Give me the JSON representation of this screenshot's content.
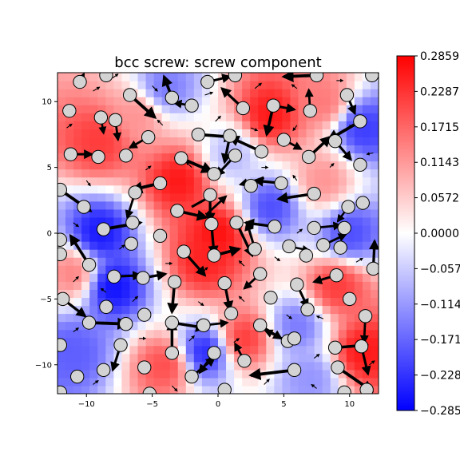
{
  "chart_data": {
    "type": "heatmap",
    "title": "bcc screw: screw component",
    "xlim": [
      -12.2,
      12.2
    ],
    "ylim": [
      -12.2,
      12.2
    ],
    "x_ticks": [
      -10,
      -5,
      0,
      5,
      10
    ],
    "x_tick_labels": [
      "−10",
      "−5",
      "0",
      "5",
      "10"
    ],
    "y_ticks": [
      10,
      5,
      0,
      -5,
      -10
    ],
    "y_tick_labels": [
      "10",
      "5",
      "0",
      "−5",
      "−10"
    ],
    "colormap": "bwr",
    "colorbar": {
      "min": -0.2859,
      "max": 0.2859,
      "ticks": [
        0.2859,
        0.2287,
        0.1715,
        0.1143,
        0.0572,
        0.0,
        -0.0572,
        -0.1143,
        -0.1715,
        -0.2287,
        -0.2859
      ],
      "tick_labels": [
        "0.2859",
        "0.2287",
        "0.1715",
        "0.1143",
        "0.0572",
        "0.0000",
        "−0.0572",
        "−0.1143",
        "−0.1715",
        "−0.2287",
        "−0.2859"
      ]
    },
    "colors": {
      "low": "#0000ff",
      "mid": "#ffffff",
      "high": "#ff0000",
      "atom_fill": "#d3d3d3",
      "arrow": "#000000"
    },
    "field_regions": [
      {
        "x": -9,
        "y": 7,
        "v": 0.22
      },
      {
        "x": -6,
        "y": 9,
        "v": 0.12
      },
      {
        "x": -3,
        "y": 4,
        "v": 0.26
      },
      {
        "x": 0,
        "y": 0,
        "v": 0.27
      },
      {
        "x": -1,
        "y": -2,
        "v": 0.25
      },
      {
        "x": 4,
        "y": 9,
        "v": 0.26
      },
      {
        "x": 8,
        "y": 10,
        "v": 0.15
      },
      {
        "x": 8,
        "y": 4,
        "v": 0.12
      },
      {
        "x": 9,
        "y": -4,
        "v": 0.22
      },
      {
        "x": 11,
        "y": -9,
        "v": 0.26
      },
      {
        "x": -4,
        "y": -10,
        "v": 0.2
      },
      {
        "x": -11,
        "y": -3,
        "v": 0.14
      },
      {
        "x": 2,
        "y": -8,
        "v": 0.22
      },
      {
        "x": -9,
        "y": 0,
        "v": -0.26
      },
      {
        "x": -8,
        "y": -4,
        "v": -0.27
      },
      {
        "x": -1,
        "y": -9,
        "v": -0.24
      },
      {
        "x": 4,
        "y": 2,
        "v": -0.2
      },
      {
        "x": 10,
        "y": 0,
        "v": -0.2
      },
      {
        "x": 11,
        "y": 8,
        "v": -0.22
      },
      {
        "x": -4,
        "y": 11,
        "v": -0.15
      },
      {
        "x": 6,
        "y": -7,
        "v": -0.15
      },
      {
        "x": -11,
        "y": -9,
        "v": -0.18
      },
      {
        "x": 7,
        "y": -11,
        "v": -0.12
      },
      {
        "x": 1,
        "y": 6,
        "v": -0.08
      }
    ],
    "atoms": [
      [
        -10.5,
        11.5
      ],
      [
        -8.5,
        12
      ],
      [
        -6.7,
        10.5
      ],
      [
        -3.5,
        10.3
      ],
      [
        -2.0,
        9.7
      ],
      [
        -0.8,
        11.5
      ],
      [
        1.3,
        12
      ],
      [
        1.9,
        9.5
      ],
      [
        4.2,
        9.7
      ],
      [
        7.0,
        9.3
      ],
      [
        7.5,
        12
      ],
      [
        9.8,
        10.5
      ],
      [
        10.8,
        8.5
      ],
      [
        11.7,
        12
      ],
      [
        -11.3,
        9.3
      ],
      [
        -8.9,
        8.8
      ],
      [
        -7.8,
        8.6
      ],
      [
        -5.3,
        7.3
      ],
      [
        -1.5,
        7.5
      ],
      [
        0.9,
        7.4
      ],
      [
        3.3,
        6.2
      ],
      [
        5.0,
        7.1
      ],
      [
        6.9,
        5.8
      ],
      [
        8.9,
        7.0
      ],
      [
        10.8,
        5.2
      ],
      [
        -11.2,
        6.0
      ],
      [
        -9.1,
        5.8
      ],
      [
        -7.0,
        5.9
      ],
      [
        -2.8,
        5.7
      ],
      [
        -0.3,
        4.5
      ],
      [
        1.3,
        5.9
      ],
      [
        2.5,
        3.6
      ],
      [
        4.8,
        3.8
      ],
      [
        7.3,
        3.0
      ],
      [
        9.9,
        2.0
      ],
      [
        11.0,
        2.3
      ],
      [
        -12.0,
        3.3
      ],
      [
        -10.2,
        2.0
      ],
      [
        -8.7,
        0.3
      ],
      [
        -6.5,
        0.8
      ],
      [
        -6.6,
        -0.8
      ],
      [
        -4.4,
        3.8
      ],
      [
        -6.3,
        3.1
      ],
      [
        -3.1,
        1.7
      ],
      [
        -0.6,
        2.9
      ],
      [
        -0.5,
        0.7
      ],
      [
        1.4,
        0.8
      ],
      [
        4.3,
        0.5
      ],
      [
        7.3,
        0.4
      ],
      [
        9.6,
        0.4
      ],
      [
        -12.0,
        -0.5
      ],
      [
        -12.0,
        -1.6
      ],
      [
        -9.8,
        -2.4
      ],
      [
        -7.9,
        -3.3
      ],
      [
        -5.7,
        -3.4
      ],
      [
        -4.4,
        -0.2
      ],
      [
        -2.6,
        -1.4
      ],
      [
        -0.3,
        -1.7
      ],
      [
        2.8,
        -1.2
      ],
      [
        5.4,
        -1.0
      ],
      [
        6.7,
        -1.7
      ],
      [
        8.0,
        -0.9
      ],
      [
        9.3,
        -1.1
      ],
      [
        11.8,
        -2.7
      ],
      [
        -11.8,
        -5.0
      ],
      [
        -8.5,
        -5.6
      ],
      [
        -5.6,
        -6.2
      ],
      [
        -3.3,
        -3.7
      ],
      [
        0.5,
        -3.8
      ],
      [
        3.2,
        -3.1
      ],
      [
        4.0,
        -4.9
      ],
      [
        6.0,
        -3.9
      ],
      [
        6.8,
        -5.8
      ],
      [
        9.0,
        -3.2
      ],
      [
        10.0,
        -5.0
      ],
      [
        11.2,
        -6.3
      ],
      [
        -9.8,
        -6.8
      ],
      [
        -7.0,
        -6.9
      ],
      [
        -3.5,
        -6.8
      ],
      [
        -1.1,
        -7.0
      ],
      [
        1.0,
        -6.1
      ],
      [
        3.2,
        -7.0
      ],
      [
        5.3,
        -8.2
      ],
      [
        5.8,
        -8.0
      ],
      [
        8.9,
        -8.7
      ],
      [
        10.9,
        -8.6
      ],
      [
        -12.0,
        -8.5
      ],
      [
        -7.4,
        -8.5
      ],
      [
        -3.5,
        -9.1
      ],
      [
        -0.3,
        -9.1
      ],
      [
        2.0,
        -9.7
      ],
      [
        -8.7,
        -10.4
      ],
      [
        -5.6,
        -10.2
      ],
      [
        -2.0,
        -10.9
      ],
      [
        5.8,
        -10.4
      ],
      [
        9.1,
        -10.2
      ],
      [
        11.3,
        -11.9
      ],
      [
        -10.7,
        -10.9
      ],
      [
        -12.0,
        -12.1
      ],
      [
        -5.2,
        -12.2
      ],
      [
        0.5,
        -11.9
      ],
      [
        9.6,
        -12.1
      ]
    ],
    "displacements": [
      [
        -10.5,
        11.5,
        0.3,
        0.6,
        0.6
      ],
      [
        -6.7,
        10.5,
        1.9,
        -1.7,
        1
      ],
      [
        -3.5,
        10.3,
        -0.6,
        1.6,
        0.9
      ],
      [
        -2.0,
        9.7,
        -1.3,
        0.2,
        0.6
      ],
      [
        -0.8,
        11.5,
        1.7,
        0.4,
        0.7
      ],
      [
        1.9,
        9.5,
        -1.6,
        1.5,
        0.8
      ],
      [
        4.2,
        9.7,
        -0.5,
        -2.2,
        0.9
      ],
      [
        4.2,
        9.7,
        1.6,
        -0.3,
        0.7
      ],
      [
        7.0,
        9.3,
        -0.1,
        1.6,
        0.6
      ],
      [
        7.5,
        12,
        -2.5,
        -0.1,
        1
      ],
      [
        9.8,
        10.5,
        0.6,
        -1.4,
        0.7
      ],
      [
        10.8,
        8.5,
        -2.4,
        -1.4,
        1
      ],
      [
        -8.9,
        8.8,
        0.2,
        -1.2,
        0.5
      ],
      [
        -5.3,
        7.3,
        -1.4,
        -0.8,
        0.6
      ],
      [
        -1.5,
        7.5,
        2.7,
        -0.2,
        1
      ],
      [
        0.9,
        7.4,
        -0.4,
        -2.0,
        0.8
      ],
      [
        3.3,
        6.2,
        -2.4,
        1.1,
        0.9
      ],
      [
        5.0,
        7.1,
        1.3,
        -0.7,
        0.6
      ],
      [
        6.9,
        5.8,
        1.6,
        1.5,
        0.9
      ],
      [
        8.9,
        7.0,
        1.2,
        -1.4,
        0.7
      ],
      [
        -11.2,
        6.0,
        1.6,
        0,
        0.7
      ],
      [
        -2.8,
        5.7,
        2.3,
        -1.0,
        1
      ],
      [
        1.3,
        5.9,
        -1.4,
        -1.5,
        0.7
      ],
      [
        4.8,
        3.8,
        -2.0,
        0.2,
        0.8
      ],
      [
        7.3,
        3.0,
        -2.7,
        -0.4,
        0.9
      ],
      [
        9.9,
        2.0,
        -0.8,
        -1.1,
        0.5
      ],
      [
        -12.0,
        3.3,
        2.3,
        -1.6,
        1
      ],
      [
        -8.7,
        0.3,
        2.8,
        0.5,
        1
      ],
      [
        -4.4,
        3.8,
        -2.1,
        -0.5,
        1
      ],
      [
        -6.3,
        3.1,
        -0.6,
        -1.9,
        0.6
      ],
      [
        -3.1,
        1.7,
        2.2,
        -0.5,
        0.9
      ],
      [
        -0.6,
        2.9,
        0,
        -2.0,
        0.8
      ],
      [
        -0.5,
        0.7,
        0.2,
        -2.3,
        0.8
      ],
      [
        1.4,
        0.8,
        1.2,
        -2.5,
        0.8
      ],
      [
        4.3,
        0.5,
        -2.2,
        0.3,
        0.8
      ],
      [
        7.3,
        0.4,
        2.0,
        0.2,
        0.6
      ],
      [
        -9.8,
        -2.4,
        -1.4,
        2.2,
        0.9
      ],
      [
        -7.9,
        -3.3,
        2.0,
        0.1,
        0.7
      ],
      [
        -5.7,
        -3.4,
        1.7,
        0.3,
        0.8
      ],
      [
        -2.6,
        -1.4,
        1.6,
        -1.8,
        0.8
      ],
      [
        -0.3,
        -1.7,
        1.9,
        0.5,
        0.9
      ],
      [
        2.8,
        -1.2,
        -0.6,
        2.0,
        0.7
      ],
      [
        5.4,
        -1.0,
        1.5,
        -0.3,
        0.5
      ],
      [
        8.0,
        -0.9,
        1.7,
        0.8,
        0.6
      ],
      [
        11.8,
        -2.7,
        0.1,
        2.1,
        0.8
      ],
      [
        -11.8,
        -5.0,
        1.7,
        -1.3,
        0.8
      ],
      [
        -3.3,
        -3.7,
        -0.2,
        -2.3,
        0.9
      ],
      [
        0.5,
        -3.8,
        0.4,
        -2.0,
        0.8
      ],
      [
        3.2,
        -3.1,
        -1.2,
        -1.1,
        0.6
      ],
      [
        6.0,
        -3.9,
        0.8,
        -1.7,
        0.7
      ],
      [
        9.0,
        -3.2,
        -1.7,
        -0.5,
        0.7
      ],
      [
        11.2,
        -6.3,
        -0.1,
        -2.0,
        0.6
      ],
      [
        -9.8,
        -6.8,
        2.9,
        -0.1,
        1
      ],
      [
        -3.5,
        -6.8,
        2.5,
        -0.4,
        0.9
      ],
      [
        -1.1,
        -7.0,
        1.8,
        0.2,
        0.6
      ],
      [
        3.2,
        -7.0,
        1.6,
        -1.0,
        0.7
      ],
      [
        5.3,
        -8.2,
        -1.7,
        0.8,
        0.6
      ],
      [
        8.9,
        -8.7,
        2.4,
        0.2,
        0.9
      ],
      [
        10.9,
        -8.6,
        0.5,
        -2.1,
        0.7
      ],
      [
        -7.4,
        -8.5,
        -0.6,
        -1.9,
        0.7
      ],
      [
        -3.5,
        -9.1,
        0,
        2.4,
        0.9
      ],
      [
        -0.3,
        -9.1,
        -1.1,
        -1.5,
        0.7
      ],
      [
        2.0,
        -9.7,
        -0.7,
        1.3,
        0.6
      ],
      [
        5.8,
        -10.4,
        -3.3,
        -0.4,
        1
      ],
      [
        9.1,
        -10.2,
        2.6,
        -1.8,
        1
      ],
      [
        -2.0,
        -10.9,
        1.7,
        1.4,
        0.7
      ],
      [
        -0.8,
        1.5,
        1.4,
        1.3,
        0.6
      ],
      [
        -7.8,
        8.6,
        0.2,
        -1.5,
        0.6
      ],
      [
        -2.0,
        2.0,
        1.8,
        1.0,
        0.7
      ],
      [
        3.5,
        4.2,
        -1.8,
        -0.5,
        0.6
      ]
    ],
    "small_arrows": [
      [
        -9.5,
        10.8,
        0.5,
        0.3
      ],
      [
        -5,
        11.2,
        0.4,
        -0.4
      ],
      [
        -1,
        10.5,
        0.6,
        0.2
      ],
      [
        2.8,
        11,
        0.5,
        0.4
      ],
      [
        6,
        11,
        -0.4,
        0.3
      ],
      [
        9,
        11.6,
        0.5,
        0
      ],
      [
        -11.5,
        8,
        0.4,
        0.3
      ],
      [
        -4.2,
        8.2,
        -0.4,
        0.4
      ],
      [
        -0.2,
        8.5,
        0.4,
        0.4
      ],
      [
        2.5,
        8,
        0.5,
        -0.2
      ],
      [
        6,
        8.2,
        -0.3,
        -0.4
      ],
      [
        9.8,
        8,
        0.4,
        0.2
      ],
      [
        11.8,
        6.1,
        -0.5,
        -0.1
      ],
      [
        -10,
        4,
        0.3,
        -0.4
      ],
      [
        -5.5,
        4.8,
        0.4,
        0.3
      ],
      [
        -2,
        5,
        -0.4,
        0.4
      ],
      [
        3.3,
        5,
        0.5,
        0
      ],
      [
        6,
        4,
        -0.3,
        0.4
      ],
      [
        8.5,
        5,
        0.3,
        0.3
      ],
      [
        -11,
        0.8,
        0.4,
        -0.3
      ],
      [
        -7.5,
        -1.2,
        0.4,
        0.3
      ],
      [
        -4,
        -2.3,
        0.5,
        0
      ],
      [
        2,
        -2.5,
        -0.4,
        0.4
      ],
      [
        6,
        0,
        0.4,
        0.3
      ],
      [
        10.5,
        -2.2,
        0.5,
        0.3
      ],
      [
        -11,
        -3.7,
        0.4,
        0.4
      ],
      [
        -8.5,
        -4.5,
        -0.4,
        0.3
      ],
      [
        -6.5,
        -5.2,
        0.4,
        0.4
      ],
      [
        -1.5,
        -5.2,
        0.4,
        -0.3
      ],
      [
        2,
        -5.2,
        -0.4,
        0.4
      ],
      [
        5.2,
        -6.2,
        0.4,
        -0.3
      ],
      [
        8,
        -6.5,
        -0.5,
        0.2
      ],
      [
        -11,
        -7.5,
        0.4,
        0.3
      ],
      [
        -6,
        -8,
        0.5,
        0
      ],
      [
        -2.2,
        -8.2,
        0.4,
        0.4
      ],
      [
        1.2,
        -8.3,
        0.4,
        0.3
      ],
      [
        7.3,
        -9.5,
        0.4,
        0.3
      ],
      [
        -9.5,
        -11.5,
        0.4,
        0.3
      ],
      [
        -3.5,
        -11.6,
        0.4,
        -0.4
      ],
      [
        3.5,
        -11.5,
        0.4,
        0.4
      ],
      [
        7.5,
        -11.8,
        -0.4,
        0.3
      ],
      [
        11.5,
        -10,
        0.4,
        0.3
      ],
      [
        -8,
        11.8,
        0.4,
        0.3
      ],
      [
        4.3,
        -1.8,
        0.4,
        -0.3
      ],
      [
        -1.2,
        -3,
        0.4,
        0.4
      ]
    ]
  }
}
